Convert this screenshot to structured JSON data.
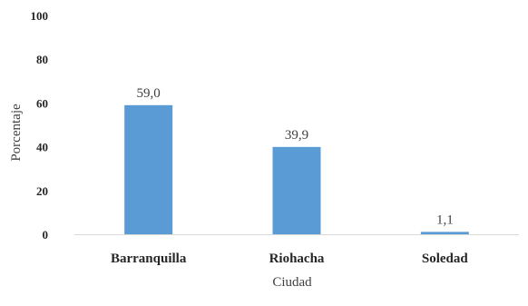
{
  "chart_data": {
    "type": "bar",
    "categories": [
      "Barranquilla",
      "Riohacha",
      "Soledad"
    ],
    "values": [
      59.0,
      39.9,
      1.1
    ],
    "value_labels": [
      "59,0",
      "39,9",
      "1,1"
    ],
    "xlabel": "Ciudad",
    "ylabel": "Porcentaje",
    "ylim": [
      0,
      100
    ],
    "yticks": [
      0,
      20,
      40,
      60,
      80,
      100
    ],
    "grid": false,
    "bar_color": "#5b9bd5"
  }
}
